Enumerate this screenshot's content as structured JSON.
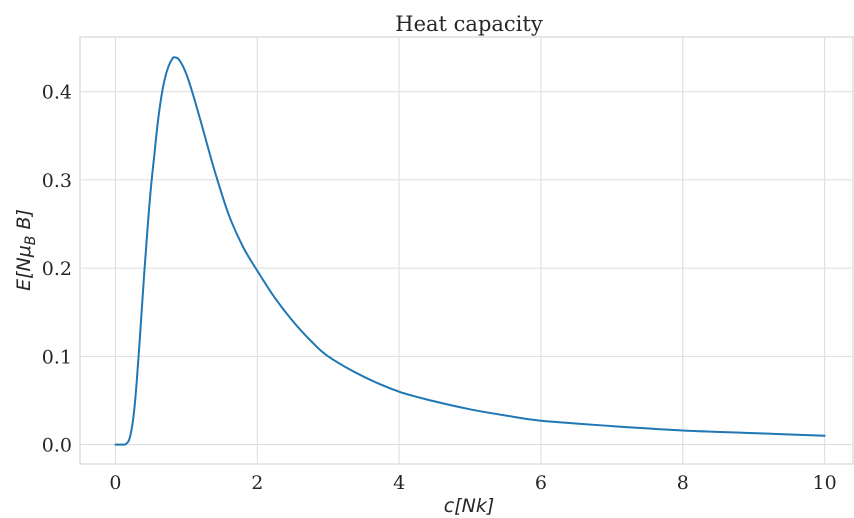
{
  "chart_data": {
    "type": "line",
    "title": "Heat capacity",
    "xlabel": "c[Nk]",
    "ylabel": "E[Nμ_B B]",
    "xlim": [
      -0.5,
      10.4
    ],
    "ylim": [
      -0.022,
      0.462
    ],
    "xticks": [
      0,
      2,
      4,
      6,
      8,
      10
    ],
    "xtick_labels": [
      "0",
      "2",
      "4",
      "6",
      "8",
      "10"
    ],
    "yticks": [
      0.0,
      0.1,
      0.2,
      0.3,
      0.4
    ],
    "ytick_labels": [
      "0.0",
      "0.1",
      "0.2",
      "0.3",
      "0.4"
    ],
    "grid": true,
    "series": [
      {
        "color": "#1f77b4",
        "x": [
          0,
          0.1,
          0.15,
          0.2,
          0.25,
          0.3,
          0.35,
          0.4,
          0.45,
          0.5,
          0.55,
          0.6,
          0.65,
          0.7,
          0.75,
          0.8,
          0.83,
          0.9,
          1.0,
          1.1,
          1.2,
          1.4,
          1.6,
          1.8,
          2.0,
          2.25,
          2.5,
          2.75,
          3.0,
          3.5,
          4.0,
          4.5,
          5.0,
          5.5,
          6.0,
          7.0,
          8.0,
          9.0,
          10.0
        ],
        "y": [
          0.0,
          0.0,
          0.0008,
          0.0071,
          0.0294,
          0.0712,
          0.128,
          0.187,
          0.243,
          0.291,
          0.33,
          0.367,
          0.396,
          0.416,
          0.429,
          0.437,
          0.439,
          0.436,
          0.42,
          0.395,
          0.367,
          0.31,
          0.26,
          0.224,
          0.197,
          0.166,
          0.14,
          0.118,
          0.1,
          0.077,
          0.06,
          0.049,
          0.04,
          0.033,
          0.027,
          0.021,
          0.016,
          0.013,
          0.01
        ]
      }
    ]
  }
}
